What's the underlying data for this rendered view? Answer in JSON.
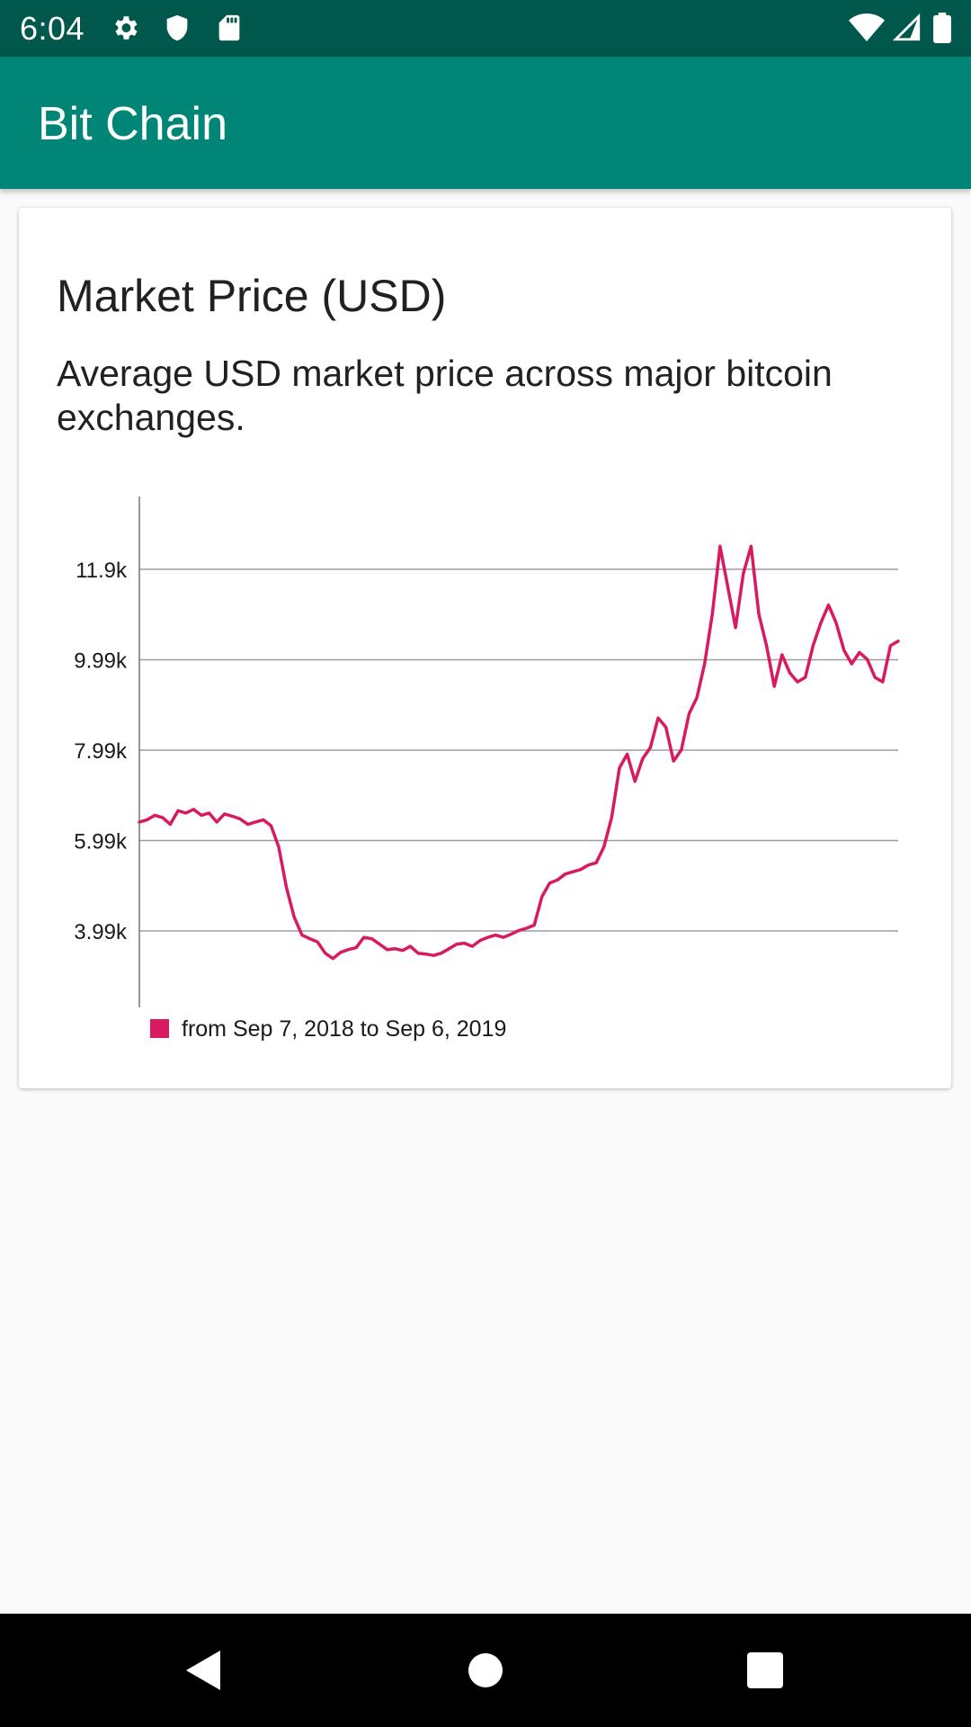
{
  "status_bar": {
    "time": "6:04",
    "left_icons": [
      "gear-icon",
      "shield-icon",
      "sd-card-icon"
    ],
    "right_icons": [
      "wifi-icon",
      "signal-icon",
      "battery-icon"
    ]
  },
  "app_bar": {
    "title": "Bit Chain",
    "color": "#008577",
    "status_color": "#00574b"
  },
  "card": {
    "title": "Market Price (USD)",
    "description": "Average USD market price across major bitcoin exchanges."
  },
  "chart_data": {
    "type": "line",
    "title": "",
    "xlabel": "",
    "ylabel": "",
    "y_ticks": [
      "3.99k",
      "5.99k",
      "7.99k",
      "9.99k",
      "11.9k"
    ],
    "y_tick_values": [
      3990,
      5990,
      7990,
      9990,
      11990
    ],
    "ylim": [
      2300,
      13600
    ],
    "x_range": [
      "2018-09-07",
      "2019-09-06"
    ],
    "grid": true,
    "legend_position": "bottom-left",
    "series": [
      {
        "name": "from Sep 7, 2018 to Sep 6, 2019",
        "color": "#d81b60",
        "values": [
          6400,
          6450,
          6550,
          6500,
          6350,
          6650,
          6600,
          6680,
          6550,
          6600,
          6400,
          6580,
          6530,
          6470,
          6350,
          6400,
          6450,
          6320,
          5850,
          4950,
          4300,
          3900,
          3820,
          3750,
          3500,
          3380,
          3520,
          3580,
          3620,
          3850,
          3820,
          3700,
          3580,
          3600,
          3560,
          3650,
          3500,
          3480,
          3450,
          3500,
          3600,
          3700,
          3720,
          3650,
          3780,
          3850,
          3900,
          3850,
          3920,
          4000,
          4050,
          4120,
          4750,
          5050,
          5120,
          5250,
          5300,
          5350,
          5450,
          5500,
          5850,
          6500,
          7600,
          7900,
          7300,
          7800,
          8050,
          8700,
          8500,
          7750,
          8000,
          8800,
          9150,
          9900,
          11000,
          12500,
          11600,
          10700,
          11900,
          12500,
          11000,
          10300,
          9400,
          10100,
          9700,
          9500,
          9600,
          10300,
          10800,
          11200,
          10800,
          10200,
          9900,
          10150,
          10000,
          9600,
          9500,
          10300,
          10400
        ]
      }
    ]
  },
  "nav_bar": {
    "icons": [
      "back-icon",
      "home-icon",
      "recents-icon"
    ]
  }
}
